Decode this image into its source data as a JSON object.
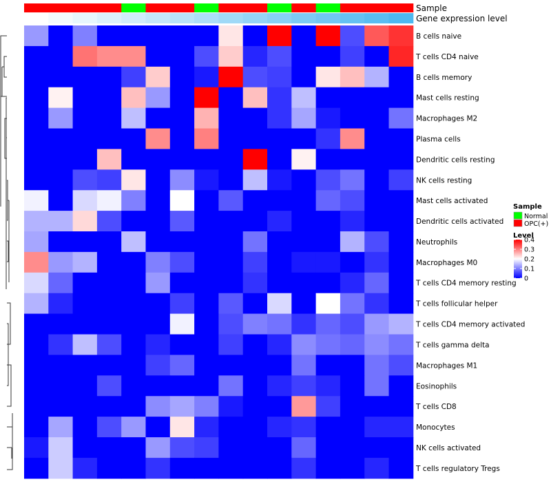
{
  "chart_data": {
    "type": "heatmap",
    "title": "",
    "annotation_labels": {
      "sample": "Sample",
      "gene_expression": "Gene expression level"
    },
    "sample_groups": [
      "OPC(+)",
      "OPC(+)",
      "OPC(+)",
      "OPC(+)",
      "Normal",
      "OPC(+)",
      "OPC(+)",
      "Normal",
      "OPC(+)",
      "OPC(+)",
      "Normal",
      "OPC(+)",
      "Normal",
      "OPC(+)",
      "OPC(+)",
      "OPC(+)"
    ],
    "gene_expression_levels": [
      0.0,
      0.04,
      0.08,
      0.12,
      0.16,
      0.2,
      0.24,
      0.28,
      0.32,
      0.36,
      0.4,
      0.44,
      0.48,
      0.52,
      0.56,
      0.6
    ],
    "rows": [
      "B cells naive",
      "T cells CD4 naive",
      "B cells memory",
      "Mast cells resting",
      "Macrophages M2",
      "Plasma cells",
      "Dendritic cells resting",
      "NK cells resting",
      "Mast cells activated",
      "Dendritic cells activated",
      "Neutrophils",
      "Macrophages M0",
      "T cells CD4 memory resting",
      "T cells follicular helper",
      "T cells CD4 memory activated",
      "T cells gamma delta",
      "Macrophages M1",
      "Eosinophils",
      "T cells CD8",
      "Monocytes",
      "NK cells activated",
      "T cells regulatory  Tregs"
    ],
    "values": [
      [
        0.12,
        0.0,
        0.1,
        0.0,
        0.0,
        0.0,
        0.0,
        0.0,
        0.22,
        0.0,
        0.4,
        0.0,
        0.4,
        0.06,
        0.33,
        0.36
      ],
      [
        0.0,
        0.0,
        0.31,
        0.29,
        0.29,
        0.0,
        0.0,
        0.06,
        0.24,
        0.03,
        0.06,
        0.0,
        0.0,
        0.05,
        0.0,
        0.37
      ],
      [
        0.0,
        0.0,
        0.0,
        0.0,
        0.05,
        0.24,
        0.0,
        0.02,
        0.4,
        0.06,
        0.05,
        0.0,
        0.22,
        0.25,
        0.14,
        0.0
      ],
      [
        0.0,
        0.21,
        0.0,
        0.0,
        0.25,
        0.12,
        0.0,
        0.4,
        0.0,
        0.25,
        0.04,
        0.15,
        0.0,
        0.0,
        0.0,
        0.0
      ],
      [
        0.0,
        0.12,
        0.0,
        0.0,
        0.15,
        0.0,
        0.0,
        0.26,
        0.0,
        0.0,
        0.04,
        0.13,
        0.02,
        0.0,
        0.0,
        0.09
      ],
      [
        0.0,
        0.0,
        0.0,
        0.0,
        0.0,
        0.29,
        0.0,
        0.3,
        0.0,
        0.0,
        0.0,
        0.0,
        0.04,
        0.29,
        0.0,
        0.0
      ],
      [
        0.0,
        0.0,
        0.0,
        0.25,
        0.0,
        0.0,
        0.0,
        0.0,
        0.0,
        0.4,
        0.0,
        0.21,
        0.0,
        0.0,
        0.0,
        0.0
      ],
      [
        0.0,
        0.0,
        0.06,
        0.05,
        0.22,
        0.0,
        0.11,
        0.02,
        0.0,
        0.15,
        0.02,
        0.0,
        0.06,
        0.09,
        0.0,
        0.05
      ],
      [
        0.19,
        0.0,
        0.17,
        0.19,
        0.1,
        0.0,
        0.2,
        0.0,
        0.07,
        0.0,
        0.0,
        0.0,
        0.08,
        0.06,
        0.0,
        0.0
      ],
      [
        0.14,
        0.14,
        0.23,
        0.06,
        0.0,
        0.0,
        0.07,
        0.0,
        0.0,
        0.0,
        0.03,
        0.0,
        0.0,
        0.03,
        0.0,
        0.0
      ],
      [
        0.13,
        0.0,
        0.0,
        0.0,
        0.15,
        0.0,
        0.0,
        0.0,
        0.0,
        0.09,
        0.0,
        0.0,
        0.0,
        0.14,
        0.06,
        0.0
      ],
      [
        0.29,
        0.12,
        0.14,
        0.0,
        0.0,
        0.1,
        0.06,
        0.0,
        0.0,
        0.05,
        0.0,
        0.02,
        0.02,
        0.0,
        0.04,
        0.0
      ],
      [
        0.17,
        0.08,
        0.0,
        0.0,
        0.0,
        0.12,
        0.0,
        0.0,
        0.0,
        0.04,
        0.0,
        0.0,
        0.0,
        0.03,
        0.08,
        0.0
      ],
      [
        0.14,
        0.03,
        0.0,
        0.0,
        0.0,
        0.0,
        0.05,
        0.0,
        0.07,
        0.0,
        0.17,
        0.0,
        0.2,
        0.09,
        0.04,
        0.0
      ],
      [
        0.0,
        0.0,
        0.0,
        0.0,
        0.0,
        0.0,
        0.19,
        0.0,
        0.06,
        0.1,
        0.09,
        0.04,
        0.08,
        0.06,
        0.12,
        0.14
      ],
      [
        0.0,
        0.04,
        0.15,
        0.06,
        0.0,
        0.03,
        0.0,
        0.0,
        0.05,
        0.0,
        0.03,
        0.11,
        0.09,
        0.08,
        0.11,
        0.09
      ],
      [
        0.0,
        0.0,
        0.0,
        0.0,
        0.0,
        0.05,
        0.08,
        0.0,
        0.0,
        0.0,
        0.0,
        0.09,
        0.0,
        0.0,
        0.09,
        0.06
      ],
      [
        0.0,
        0.0,
        0.0,
        0.06,
        0.0,
        0.0,
        0.0,
        0.0,
        0.09,
        0.0,
        0.03,
        0.05,
        0.03,
        0.0,
        0.09,
        0.0
      ],
      [
        0.0,
        0.0,
        0.0,
        0.0,
        0.0,
        0.11,
        0.13,
        0.1,
        0.02,
        0.0,
        0.0,
        0.28,
        0.05,
        0.0,
        0.0,
        0.0
      ],
      [
        0.0,
        0.13,
        0.0,
        0.06,
        0.12,
        0.0,
        0.22,
        0.03,
        0.0,
        0.0,
        0.03,
        0.04,
        0.0,
        0.0,
        0.03,
        0.03
      ],
      [
        0.02,
        0.16,
        0.0,
        0.0,
        0.0,
        0.12,
        0.06,
        0.05,
        0.0,
        0.0,
        0.0,
        0.08,
        0.0,
        0.0,
        0.0,
        0.0
      ],
      [
        0.0,
        0.16,
        0.03,
        0.0,
        0.0,
        0.04,
        0.0,
        0.0,
        0.0,
        0.0,
        0.0,
        0.04,
        0.0,
        0.0,
        0.03,
        0.0
      ]
    ],
    "color_scale": {
      "min": 0,
      "mid": 0.2,
      "max": 0.4,
      "low_color": "#0000ff",
      "mid_color": "#ffffff",
      "high_color": "#ff0000"
    },
    "legend": {
      "sample_title": "Sample",
      "sample_items": [
        {
          "label": "Normal",
          "color": "#00ff00"
        },
        {
          "label": "OPC(+)",
          "color": "#ff0000"
        }
      ],
      "level_title": "Level",
      "level_ticks": [
        "0.4",
        "0.3",
        "0.2",
        "0.1",
        "0"
      ],
      "level_tick_values": [
        0.4,
        0.3,
        0.2,
        0.1,
        0
      ]
    },
    "annotation_colors": {
      "Normal": "#00ff00",
      "OPC(+)": "#ff0000",
      "expression_low": "#ffffff",
      "expression_high": "#4db8f0"
    }
  }
}
